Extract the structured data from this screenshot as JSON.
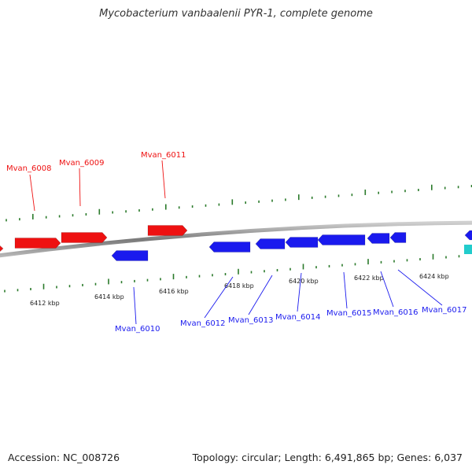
{
  "title": "Mycobacterium vanbaalenii PYR-1, complete genome",
  "footer": {
    "accession": "Accession: NC_008726",
    "summary": "Topology: circular; Length: 6,491,865 bp; Genes: 6,037"
  },
  "colors": {
    "forward_gene": "#ee1111",
    "reverse_gene": "#1a1aee",
    "other_feature": "#22cccc",
    "tick": "#2a7a2a",
    "backbone": "#8a8a8a"
  },
  "ticks": {
    "inner_labels": [
      "6412 kbp",
      "6414 kbp",
      "6416 kbp",
      "6418 kbp",
      "6420 kbp",
      "6422 kbp",
      "6424 kbp"
    ]
  },
  "genes": {
    "forward": [
      "Mvan_6008",
      "Mvan_6009",
      "Mvan_6011"
    ],
    "reverse": [
      "Mvan_6010",
      "Mvan_6012",
      "Mvan_6013",
      "Mvan_6014",
      "Mvan_6015",
      "Mvan_6016",
      "Mvan_6017"
    ]
  }
}
